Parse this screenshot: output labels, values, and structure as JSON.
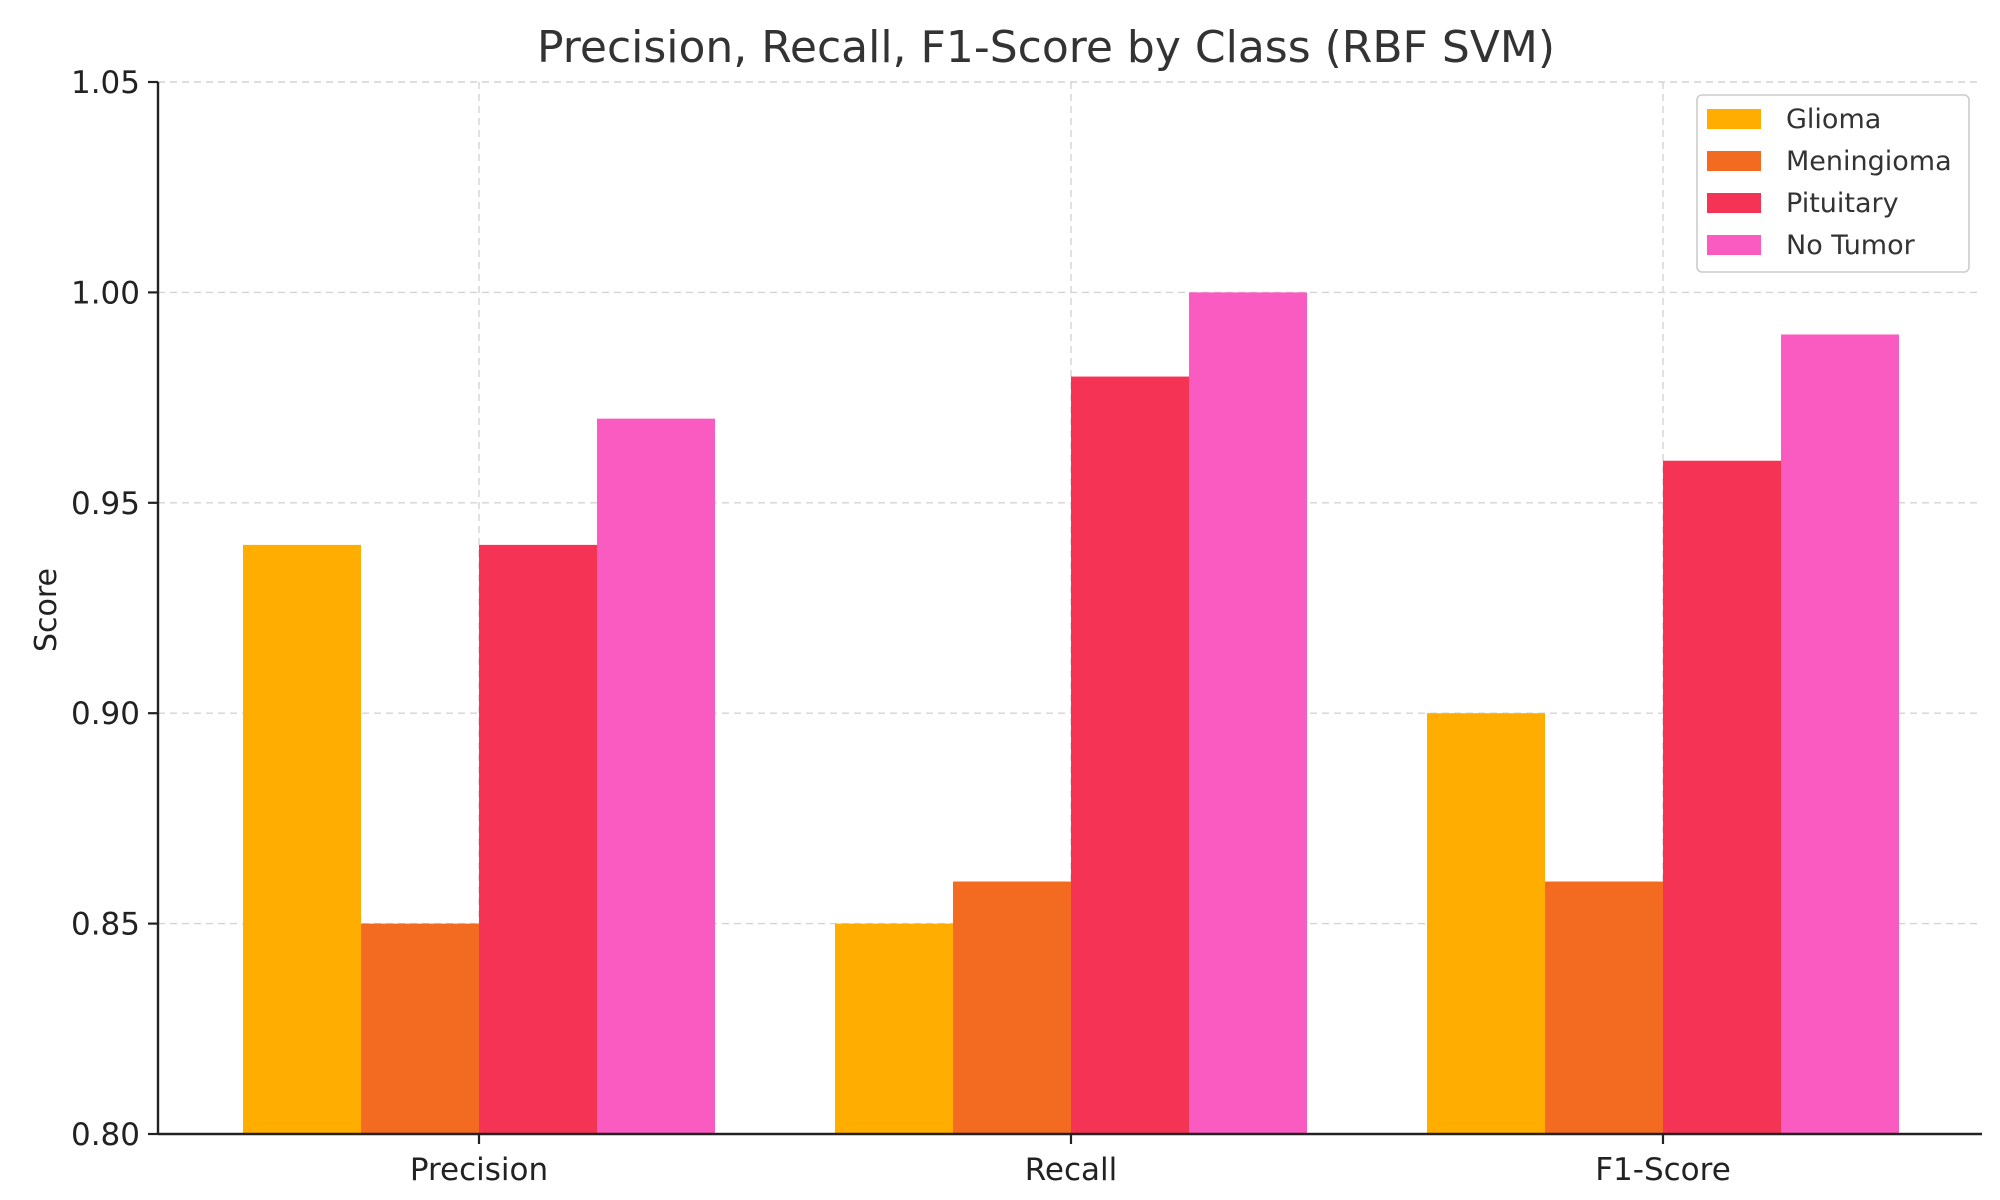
{
  "chart_data": {
    "type": "bar",
    "title": "Precision, Recall, F1-Score by Class (RBF SVM)",
    "xlabel": "",
    "ylabel": "Score",
    "categories": [
      "Precision",
      "Recall",
      "F1-Score"
    ],
    "series": [
      {
        "name": "Glioma",
        "color": "#ffae00",
        "values": [
          0.94,
          0.85,
          0.9
        ]
      },
      {
        "name": "Meningioma",
        "color": "#f26b21",
        "values": [
          0.85,
          0.86,
          0.86
        ]
      },
      {
        "name": "Pituitary",
        "color": "#f53354",
        "values": [
          0.94,
          0.98,
          0.96
        ]
      },
      {
        "name": "No Tumor",
        "color": "#f95bc0",
        "values": [
          0.97,
          1.0,
          0.99
        ]
      }
    ],
    "ylim": [
      0.8,
      1.05
    ],
    "yticks": [
      "0.80",
      "0.85",
      "0.90",
      "0.95",
      "1.00",
      "1.05"
    ],
    "grid": true,
    "legend_position": "top-right"
  }
}
